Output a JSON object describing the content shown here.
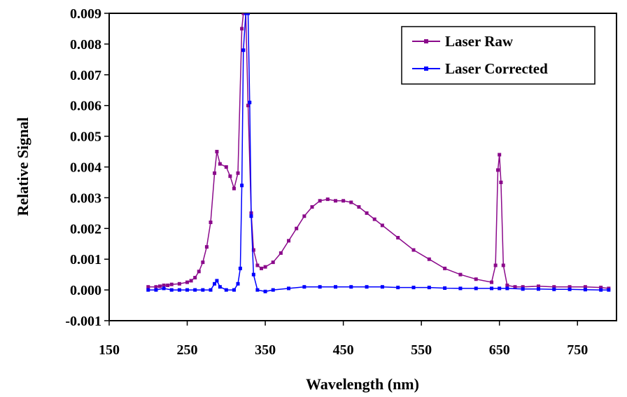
{
  "chart_data": {
    "type": "line",
    "title": "",
    "xlabel": "Wavelength (nm)",
    "ylabel": "Relative Signal",
    "xlim": [
      150,
      800
    ],
    "ylim": [
      -0.001,
      0.009
    ],
    "xticks": [
      150,
      250,
      350,
      450,
      550,
      650,
      750
    ],
    "yticks": [
      -0.001,
      0.0,
      0.001,
      0.002,
      0.003,
      0.004,
      0.005,
      0.006,
      0.007,
      0.008,
      0.009
    ],
    "ytick_labels": [
      "-0.001",
      "0.000",
      "0.001",
      "0.002",
      "0.003",
      "0.004",
      "0.005",
      "0.006",
      "0.007",
      "0.008",
      "0.009"
    ],
    "xtick_labels": [
      "150",
      "250",
      "350",
      "450",
      "550",
      "650",
      "750"
    ],
    "grid": false,
    "legend_position": "top-right",
    "series": [
      {
        "name": "Laser Raw",
        "color": "#8B0A8B",
        "x": [
          200,
          210,
          215,
          220,
          225,
          230,
          240,
          250,
          255,
          260,
          265,
          270,
          275,
          280,
          285,
          288,
          292,
          300,
          305,
          310,
          315,
          320,
          322,
          325,
          328,
          332,
          335,
          340,
          345,
          350,
          360,
          370,
          380,
          390,
          400,
          410,
          420,
          430,
          440,
          450,
          460,
          470,
          480,
          490,
          500,
          520,
          540,
          560,
          580,
          600,
          620,
          640,
          645,
          648,
          650,
          652,
          655,
          660,
          670,
          680,
          700,
          720,
          740,
          760,
          780,
          790
        ],
        "y": [
          0.0001,
          0.0001,
          0.00012,
          0.00015,
          0.00015,
          0.00018,
          0.0002,
          0.00025,
          0.0003,
          0.0004,
          0.0006,
          0.0009,
          0.0014,
          0.0022,
          0.0038,
          0.0045,
          0.0041,
          0.004,
          0.0037,
          0.0033,
          0.0038,
          0.0085,
          0.009,
          0.009,
          0.006,
          0.0025,
          0.0013,
          0.0008,
          0.0007,
          0.00075,
          0.0009,
          0.0012,
          0.0016,
          0.002,
          0.0024,
          0.0027,
          0.0029,
          0.00295,
          0.0029,
          0.0029,
          0.00285,
          0.0027,
          0.0025,
          0.0023,
          0.0021,
          0.0017,
          0.0013,
          0.001,
          0.0007,
          0.0005,
          0.00035,
          0.00025,
          0.0008,
          0.0039,
          0.0044,
          0.0035,
          0.0008,
          0.00015,
          0.0001,
          0.0001,
          0.00012,
          0.0001,
          0.0001,
          0.0001,
          8e-05,
          5e-05
        ]
      },
      {
        "name": "Laser Corrected",
        "color": "#0000FF",
        "x": [
          200,
          210,
          220,
          230,
          240,
          250,
          260,
          270,
          280,
          285,
          288,
          292,
          300,
          310,
          315,
          318,
          320,
          322,
          325,
          328,
          330,
          332,
          335,
          340,
          350,
          360,
          380,
          400,
          420,
          440,
          460,
          480,
          500,
          520,
          540,
          560,
          580,
          600,
          620,
          640,
          650,
          660,
          680,
          700,
          720,
          740,
          760,
          780,
          790
        ],
        "y": [
          0.0,
          0.0,
          5e-05,
          0.0,
          0.0,
          0.0,
          0.0,
          0.0,
          0.0,
          0.0002,
          0.0003,
          0.0001,
          0.0,
          0.0,
          0.0002,
          0.0007,
          0.0034,
          0.0078,
          0.009,
          0.009,
          0.0061,
          0.0024,
          0.0005,
          0.0,
          -5e-05,
          0.0,
          5e-05,
          0.0001,
          0.0001,
          0.0001,
          0.0001,
          0.0001,
          0.0001,
          8e-05,
          8e-05,
          8e-05,
          6e-05,
          5e-05,
          5e-05,
          5e-05,
          5e-05,
          5e-05,
          3e-05,
          3e-05,
          2e-05,
          2e-05,
          1e-05,
          0.0,
          0.0
        ]
      }
    ]
  }
}
